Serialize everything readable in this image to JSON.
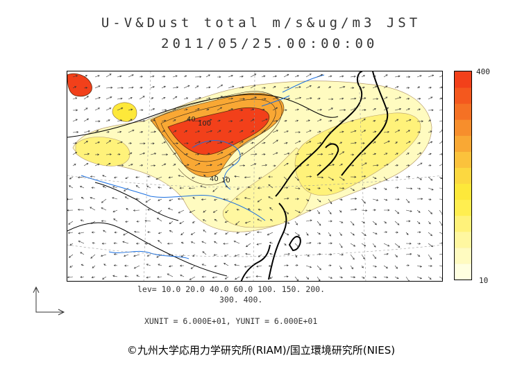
{
  "title_line1": "U-V&Dust total m/s&ug/m3 JST",
  "title_line2": "2011/05/25.00:00:00",
  "colorbar": {
    "max_label": "400",
    "min_label": "10",
    "levels": [
      10,
      20,
      40,
      60,
      100,
      150,
      200,
      300,
      400
    ],
    "colors": [
      "#ffffe0",
      "#fffbc0",
      "#fff7a0",
      "#fff27a",
      "#ffee50",
      "#fde83a",
      "#fcd840",
      "#fbc23c",
      "#f9a834",
      "#f78e2c",
      "#f57124",
      "#f4581e",
      "#f2401a"
    ]
  },
  "lev_line1": "lev= 10.0 20.0 40.0 60.0 100. 150. 200.",
  "lev_line2": "300. 400.",
  "units_line": "XUNIT = 6.000E+01, YUNIT = 6.000E+01",
  "credit": "©九州大学応用力学研究所(RIAM)/国立環境研究所(NIES)",
  "contour_labels": [
    "40",
    "100",
    "40",
    "10"
  ],
  "palette": {
    "high": "#f2401a",
    "orange": "#f9a834",
    "yellow": "#fff27a",
    "pale": "#fffbc0",
    "river": "#1a6fe0",
    "coast": "#000000",
    "grid": "#999999"
  }
}
